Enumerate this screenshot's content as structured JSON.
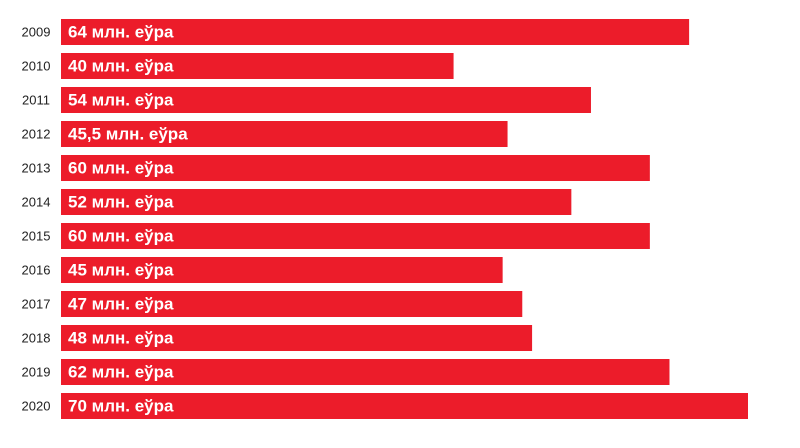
{
  "chart_data": {
    "type": "bar",
    "orientation": "horizontal",
    "color": "#ec1c2a",
    "categories": [
      "2009",
      "2010",
      "2011",
      "2012",
      "2013",
      "2014",
      "2015",
      "2016",
      "2017",
      "2018",
      "2019",
      "2020"
    ],
    "values": [
      64,
      40,
      54,
      45.5,
      60,
      52,
      60,
      45,
      47,
      48,
      62,
      70
    ],
    "value_labels": [
      "64 млн. еўра",
      "40 млн. еўра",
      "54 млн. еўра",
      "45,5 млн. еўра",
      "60 млн. еўра",
      "52 млн. еўра",
      "60 млн. еўра",
      "45 млн. еўра",
      "47 млн. еўра",
      "48 млн. еўра",
      "62 млн. еўра",
      "70 млн. еўра"
    ]
  }
}
